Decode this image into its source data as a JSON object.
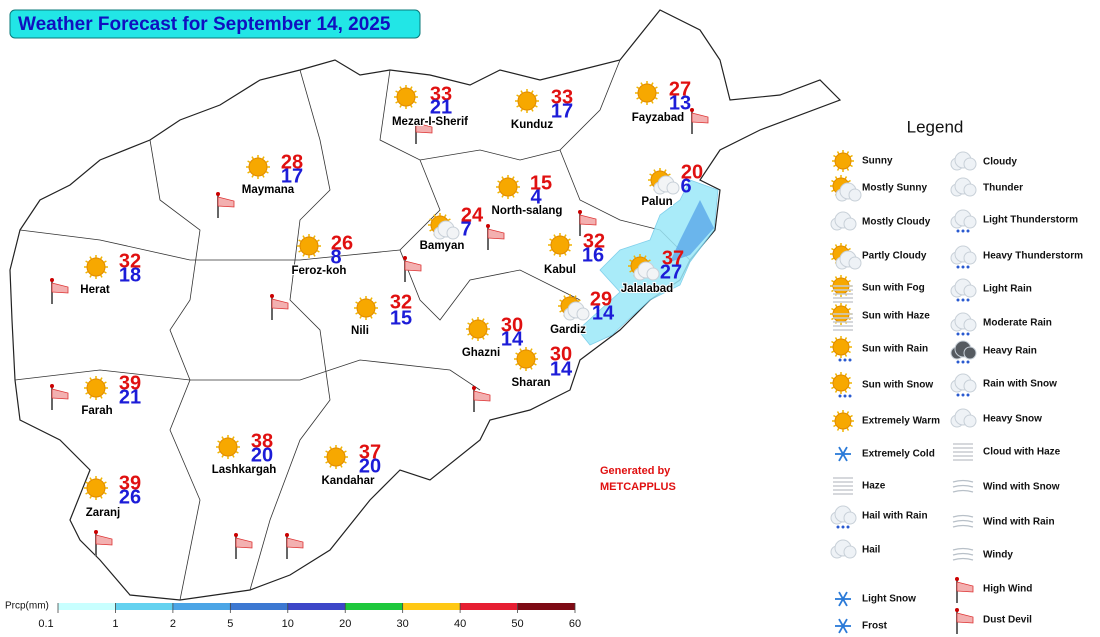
{
  "title": "Weather Forecast for September 14, 2025",
  "cities": [
    {
      "name": "Mezar-I-Sherif",
      "max": 33,
      "min": 21
    },
    {
      "name": "Kunduz",
      "max": 33,
      "min": 17
    },
    {
      "name": "Fayzabad",
      "max": 27,
      "min": 13
    },
    {
      "name": "Maymana",
      "max": 28,
      "min": 17
    },
    {
      "name": "Palun",
      "max": 20,
      "min": 6
    },
    {
      "name": "North-salang",
      "max": 15,
      "min": 4
    },
    {
      "name": "Bamyan",
      "max": 24,
      "min": 7
    },
    {
      "name": "Kabul",
      "max": 32,
      "min": 16
    },
    {
      "name": "Feroz-koh",
      "max": 26,
      "min": 8
    },
    {
      "name": "Herat",
      "max": 32,
      "min": 18
    },
    {
      "name": "Jalalabad",
      "max": 37,
      "min": 27
    },
    {
      "name": "Nili",
      "max": 32,
      "min": 15
    },
    {
      "name": "Gardiz",
      "max": 29,
      "min": 14
    },
    {
      "name": "Ghazni",
      "max": 30,
      "min": 14
    },
    {
      "name": "Sharan",
      "max": 30,
      "min": 14
    },
    {
      "name": "Farah",
      "max": 39,
      "min": 21
    },
    {
      "name": "Lashkargah",
      "max": 38,
      "min": 20
    },
    {
      "name": "Kandahar",
      "max": 37,
      "min": 20
    },
    {
      "name": "Zaranj",
      "max": 39,
      "min": 26
    }
  ],
  "legend": {
    "title": "Legend",
    "left": [
      "Sunny",
      "Mostly Sunny",
      "Mostly Cloudy",
      "Partly Cloudy",
      "Sun with Fog",
      "Sun with Haze",
      "Sun with Rain",
      "Sun with Snow",
      "Extremely Warm",
      "Extremely Cold",
      "Haze",
      "Hail with Rain",
      "Hail",
      "Light Snow",
      "Frost"
    ],
    "right": [
      "Cloudy",
      "Thunder",
      "Light Thunderstorm",
      "Heavy Thunderstorm",
      "Light Rain",
      "Moderate Rain",
      "Heavy Rain",
      "Rain with Snow",
      "Heavy Snow",
      "Cloud with Haze",
      "Wind with Snow",
      "Wind with Rain",
      "Windy",
      "High Wind",
      "Dust Devil"
    ]
  },
  "credit": [
    "Generated by",
    "METCAPPLUS"
  ],
  "precip_scale": {
    "label": "Prcp(mm)",
    "ticks": [
      0.1,
      1,
      2,
      5,
      10,
      20,
      30,
      40,
      50,
      60
    ],
    "colors": [
      "#c8ffff",
      "#64d2f0",
      "#4ba5e6",
      "#3c78d2",
      "#3c46c8",
      "#1ec83c",
      "#ffc814",
      "#e61e32",
      "#7d0a14"
    ]
  }
}
